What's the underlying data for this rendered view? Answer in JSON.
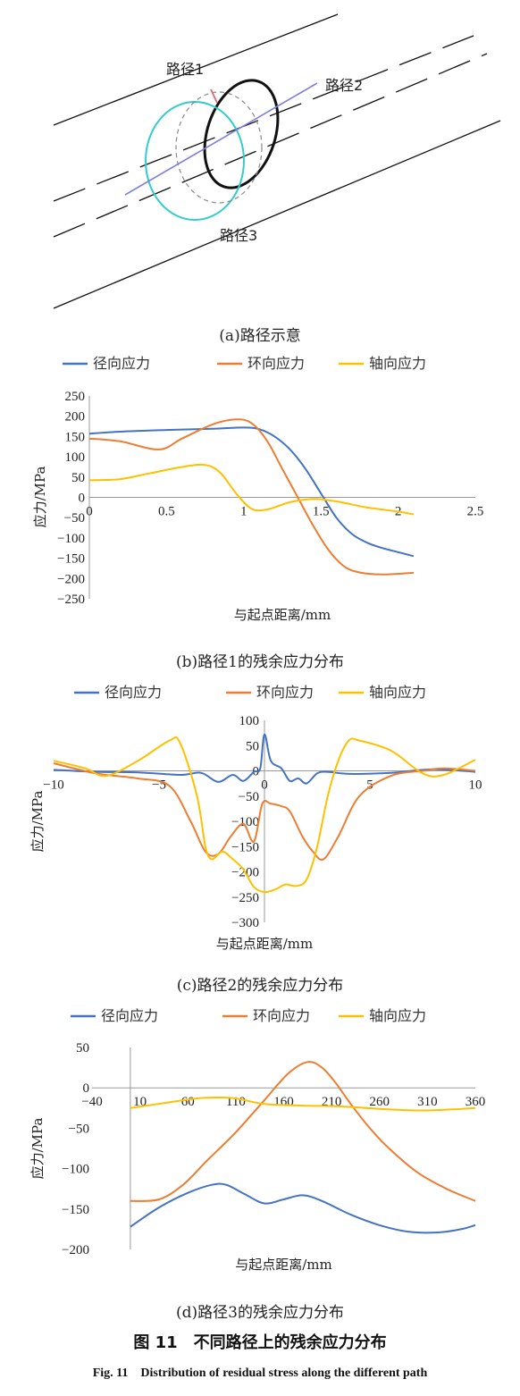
{
  "figure": {
    "title_cn": "图 11　不同路径上的残余应力分布",
    "title_en": "Fig. 11　Distribution of residual stress along the different path"
  },
  "diagram": {
    "caption": "(a)路径示意",
    "labels": [
      "路径1",
      "路径2",
      "路径3"
    ],
    "colors": {
      "path1": "#e07080",
      "path2": "#8080e0",
      "path3": "#33cccc",
      "pipe": "#111111"
    }
  },
  "colors": {
    "radial": "#4472c4",
    "hoop": "#ed7d31",
    "axial": "#ffc000",
    "axis": "#999999"
  },
  "chart_data": [
    {
      "type": "line",
      "caption": "(b)路径1的残余应力分布",
      "xlabel": "与起点距离/mm",
      "ylabel": "应力/MPa",
      "xlim": [
        0,
        2.5
      ],
      "ylim": [
        -250,
        250
      ],
      "xticks": [
        0,
        0.5,
        1,
        1.5,
        2,
        2.5
      ],
      "yticks": [
        250,
        200,
        150,
        100,
        50,
        0,
        -50,
        -100,
        -150,
        -200,
        -250
      ],
      "xtick_labels": [
        "0",
        "0.5",
        "1",
        "1.5",
        "2",
        "2.5"
      ],
      "ytick_labels": [
        "250",
        "200",
        "150",
        "100",
        "50",
        "0",
        "−50",
        "−100",
        "−150",
        "−200",
        "−250"
      ],
      "legend_position": "top",
      "series": [
        {
          "name": "径向应力",
          "color": "#4472c4",
          "x": [
            0,
            0.2,
            0.5,
            0.8,
            1.0,
            1.1,
            1.2,
            1.3,
            1.4,
            1.5,
            1.6,
            1.7,
            1.8,
            1.9,
            2.0,
            2.1
          ],
          "y": [
            157,
            162,
            166,
            169,
            172,
            168,
            150,
            118,
            70,
            10,
            -50,
            -90,
            -112,
            -125,
            -135,
            -145
          ]
        },
        {
          "name": "环向应力",
          "color": "#ed7d31",
          "x": [
            0,
            0.2,
            0.45,
            0.6,
            0.8,
            0.95,
            1.05,
            1.15,
            1.25,
            1.35,
            1.45,
            1.55,
            1.65,
            1.75,
            1.9,
            2.1
          ],
          "y": [
            145,
            138,
            118,
            145,
            180,
            192,
            183,
            140,
            70,
            0,
            -70,
            -130,
            -170,
            -185,
            -190,
            -186
          ]
        },
        {
          "name": "轴向应力",
          "color": "#ffc000",
          "x": [
            0,
            0.2,
            0.4,
            0.6,
            0.75,
            0.85,
            0.95,
            1.05,
            1.15,
            1.3,
            1.45,
            1.6,
            1.8,
            2.0,
            2.1
          ],
          "y": [
            42,
            45,
            60,
            75,
            80,
            60,
            10,
            -28,
            -30,
            -12,
            -4,
            -10,
            -25,
            -35,
            -42
          ]
        }
      ]
    },
    {
      "type": "line",
      "caption": "(c)路径2的残余应力分布",
      "xlabel": "与起点距离/mm",
      "ylabel": "应力/MPa",
      "xlim": [
        -10,
        10
      ],
      "ylim": [
        -300,
        100
      ],
      "xticks": [
        -10,
        -5,
        0,
        5,
        10
      ],
      "yticks": [
        100,
        50,
        0,
        -50,
        -100,
        -150,
        -200,
        -250,
        -300
      ],
      "xtick_labels": [
        "−10",
        "−5",
        "0",
        "5",
        "10"
      ],
      "ytick_labels": [
        "100",
        "50",
        "0",
        "−50",
        "−100",
        "−150",
        "−200",
        "−250",
        "−300"
      ],
      "legend_position": "top",
      "series": [
        {
          "name": "径向应力",
          "color": "#4472c4",
          "x": [
            -10,
            -8,
            -6,
            -4,
            -3,
            -2.2,
            -1.5,
            -1,
            -0.5,
            -0.2,
            0,
            0.3,
            0.8,
            1.2,
            1.6,
            2.0,
            2.5,
            3,
            4,
            6,
            8,
            10
          ],
          "y": [
            2,
            -2,
            -3,
            -8,
            -4,
            -22,
            -8,
            -20,
            -2,
            5,
            72,
            20,
            5,
            -20,
            -15,
            -25,
            -5,
            -2,
            -6,
            -4,
            3,
            -2
          ]
        },
        {
          "name": "环向应力",
          "color": "#ed7d31",
          "x": [
            -10,
            -8,
            -6,
            -4.5,
            -3.5,
            -2.8,
            -2.2,
            -1.6,
            -1.0,
            -0.5,
            -0.1,
            0.3,
            0.8,
            1.2,
            1.8,
            2.3,
            2.8,
            3.5,
            4.5,
            6,
            7.5,
            8.5,
            10
          ],
          "y": [
            15,
            -5,
            -15,
            -30,
            -100,
            -160,
            -165,
            -130,
            -105,
            -140,
            -65,
            -65,
            -70,
            -80,
            -130,
            -160,
            -175,
            -130,
            -50,
            -10,
            0,
            5,
            0
          ]
        },
        {
          "name": "轴向应力",
          "color": "#ffc000",
          "x": [
            -10,
            -8.5,
            -7.5,
            -6,
            -4.5,
            -4,
            -3.2,
            -2.8,
            -2.5,
            -2.0,
            -1.5,
            -1.0,
            -0.5,
            0,
            0.5,
            1.0,
            1.5,
            2.0,
            2.5,
            3.0,
            3.5,
            4.0,
            4.5,
            6,
            7.5,
            8.5,
            10
          ],
          "y": [
            20,
            5,
            -10,
            20,
            60,
            55,
            -50,
            -150,
            -175,
            -160,
            -175,
            -195,
            -230,
            -240,
            -235,
            -225,
            -228,
            -215,
            -150,
            -50,
            20,
            60,
            60,
            40,
            -5,
            -8,
            22
          ]
        }
      ]
    },
    {
      "type": "line",
      "caption": "(d)路径3的残余应力分布",
      "xlabel": "与起点距离/mm",
      "ylabel": "应力/MPa",
      "xlim": [
        -40,
        360
      ],
      "ylim": [
        -200,
        50
      ],
      "xticks": [
        -40,
        10,
        60,
        110,
        160,
        210,
        260,
        310,
        360
      ],
      "yticks": [
        50,
        0,
        -50,
        -100,
        -150,
        -200
      ],
      "xtick_labels": [
        "−40",
        "10",
        "60",
        "110",
        "160",
        "210",
        "260",
        "310",
        "360"
      ],
      "ytick_labels": [
        "50",
        "0",
        "−50",
        "−100",
        "−150",
        "−200"
      ],
      "legend_position": "top",
      "series": [
        {
          "name": "径向应力",
          "color": "#4472c4",
          "x": [
            0,
            30,
            60,
            85,
            100,
            120,
            140,
            160,
            180,
            200,
            230,
            260,
            290,
            320,
            345,
            360
          ],
          "y": [
            -172,
            -148,
            -130,
            -120,
            -120,
            -132,
            -143,
            -138,
            -133,
            -140,
            -157,
            -170,
            -178,
            -179,
            -175,
            -170
          ]
        },
        {
          "name": "环向应力",
          "color": "#ed7d31",
          "x": [
            0,
            30,
            55,
            80,
            110,
            140,
            165,
            185,
            200,
            215,
            230,
            250,
            270,
            300,
            330,
            360
          ],
          "y": [
            -140,
            -138,
            -120,
            -90,
            -55,
            -15,
            18,
            32,
            25,
            5,
            -20,
            -50,
            -75,
            -105,
            -125,
            -140
          ]
        },
        {
          "name": "轴向应力",
          "color": "#ffc000",
          "x": [
            0,
            40,
            70,
            90,
            110,
            140,
            180,
            220,
            260,
            300,
            330,
            360
          ],
          "y": [
            -25,
            -18,
            -13,
            -12,
            -13,
            -20,
            -22,
            -23,
            -26,
            -28,
            -27,
            -25
          ]
        }
      ]
    }
  ]
}
